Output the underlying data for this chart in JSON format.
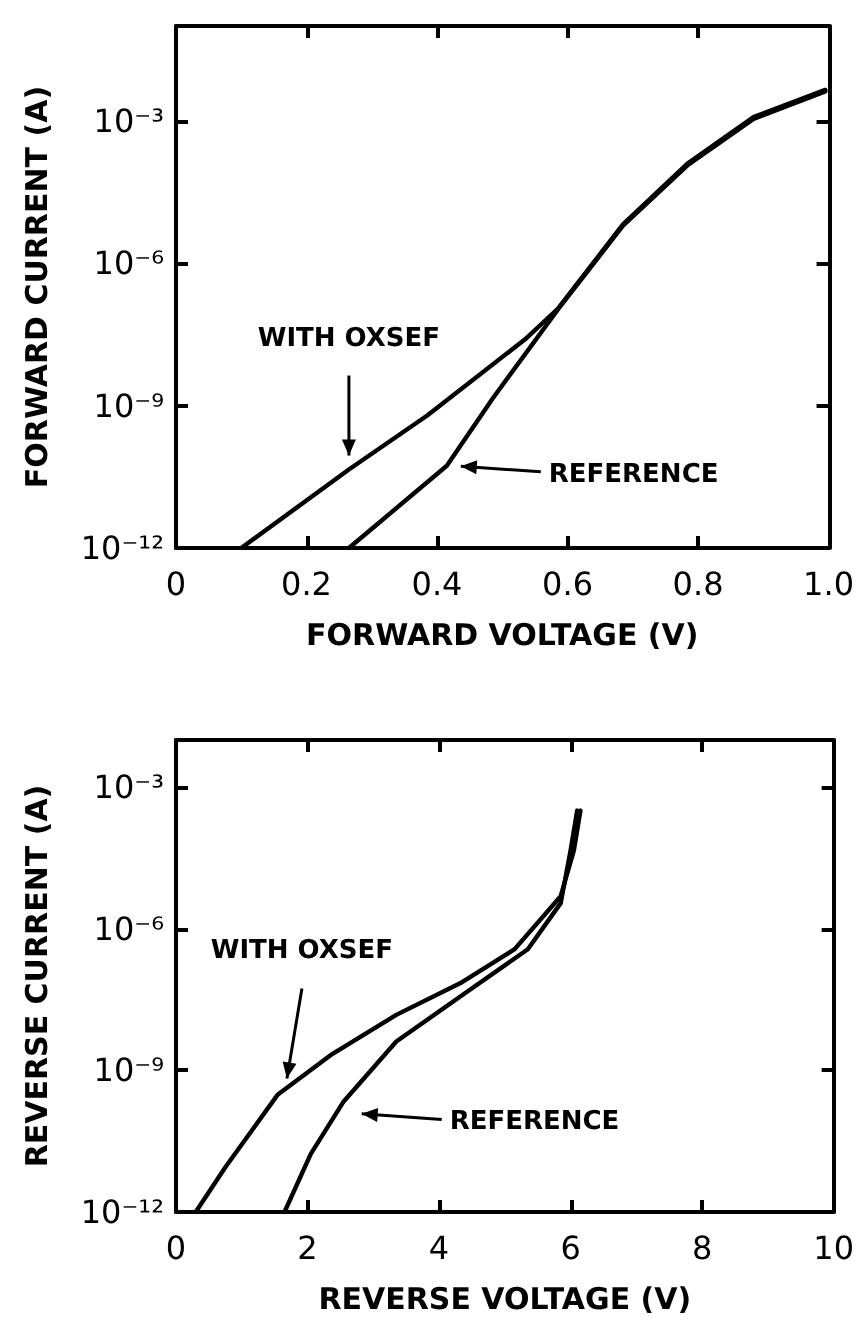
{
  "chart_data": [
    {
      "type": "line",
      "xlabel": "FORWARD VOLTAGE (V)",
      "ylabel": "FORWARD CURRENT (A)",
      "log": "y",
      "marker": "none",
      "line_style": "solid",
      "xlim": [
        0,
        1
      ],
      "xticks": [
        0,
        0.2,
        0.4,
        0.6,
        0.8,
        {
          "value": 1,
          "label": "1.0"
        }
      ],
      "ylim": [
        1e-12,
        0.1
      ],
      "yticks": [
        {
          "value": 1e-12,
          "label": "10⁻¹²"
        },
        {
          "value": 1e-09,
          "label": "10⁻⁹"
        },
        {
          "value": 1e-06,
          "label": "10⁻⁶"
        },
        {
          "value": 0.001,
          "label": "10⁻³"
        }
      ],
      "series": [
        {
          "name": "WITH OXSEF",
          "color": "#000000",
          "x": [
            0.1,
            0.265,
            0.385,
            0.535,
            0.585,
            0.685,
            0.785,
            0.885,
            0.995
          ],
          "values": [
            1e-12,
            4.5e-11,
            6.2e-10,
            2.5e-08,
            1.1e-07,
            6.6e-06,
            0.00013,
            0.0012,
            0.0045
          ]
        },
        {
          "name": "REFERENCE",
          "color": "#000000",
          "x": [
            0.265,
            0.415,
            0.485,
            0.585,
            0.685,
            0.785,
            0.885,
            0.995
          ],
          "values": [
            1e-12,
            5.4e-11,
            1.4e-09,
            1.05e-07,
            6.2e-06,
            0.00012,
            0.0011,
            0.0042
          ]
        }
      ]
    },
    {
      "type": "line",
      "xlabel": "REVERSE VOLTAGE (V)",
      "ylabel": "REVERSE CURRENT (A)",
      "log": "y",
      "marker": "none",
      "line_style": "solid",
      "xlim": [
        0,
        10
      ],
      "xticks": [
        0,
        2,
        4,
        6,
        8,
        10
      ],
      "ylim": [
        1e-12,
        0.01
      ],
      "yticks": [
        {
          "value": 1e-12,
          "label": "10⁻¹²"
        },
        {
          "value": 1e-09,
          "label": "10⁻⁹"
        },
        {
          "value": 1e-06,
          "label": "10⁻⁶"
        },
        {
          "value": 0.001,
          "label": "10⁻³"
        }
      ],
      "series": [
        {
          "name": "WITH OXSEF",
          "color": "#000000",
          "x": [
            0.3,
            0.75,
            1.55,
            2.35,
            3.35,
            4.35,
            5.15,
            5.85,
            6.05,
            6.15
          ],
          "values": [
            1e-12,
            8.9e-12,
            3.1e-10,
            2.1e-09,
            1.5e-08,
            7.4e-08,
            3.7e-07,
            4.9e-06,
            4.6e-05,
            0.00032
          ]
        },
        {
          "name": "REFERENCE",
          "color": "#000000",
          "x": [
            1.65,
            2.05,
            2.55,
            3.35,
            4.35,
            5.35,
            5.85,
            6.0,
            6.1
          ],
          "values": [
            1e-12,
            1.7e-11,
            2.2e-10,
            4.1e-09,
            3.9e-08,
            3.7e-07,
            3.5e-06,
            4.6e-05,
            0.00032
          ]
        }
      ]
    }
  ]
}
